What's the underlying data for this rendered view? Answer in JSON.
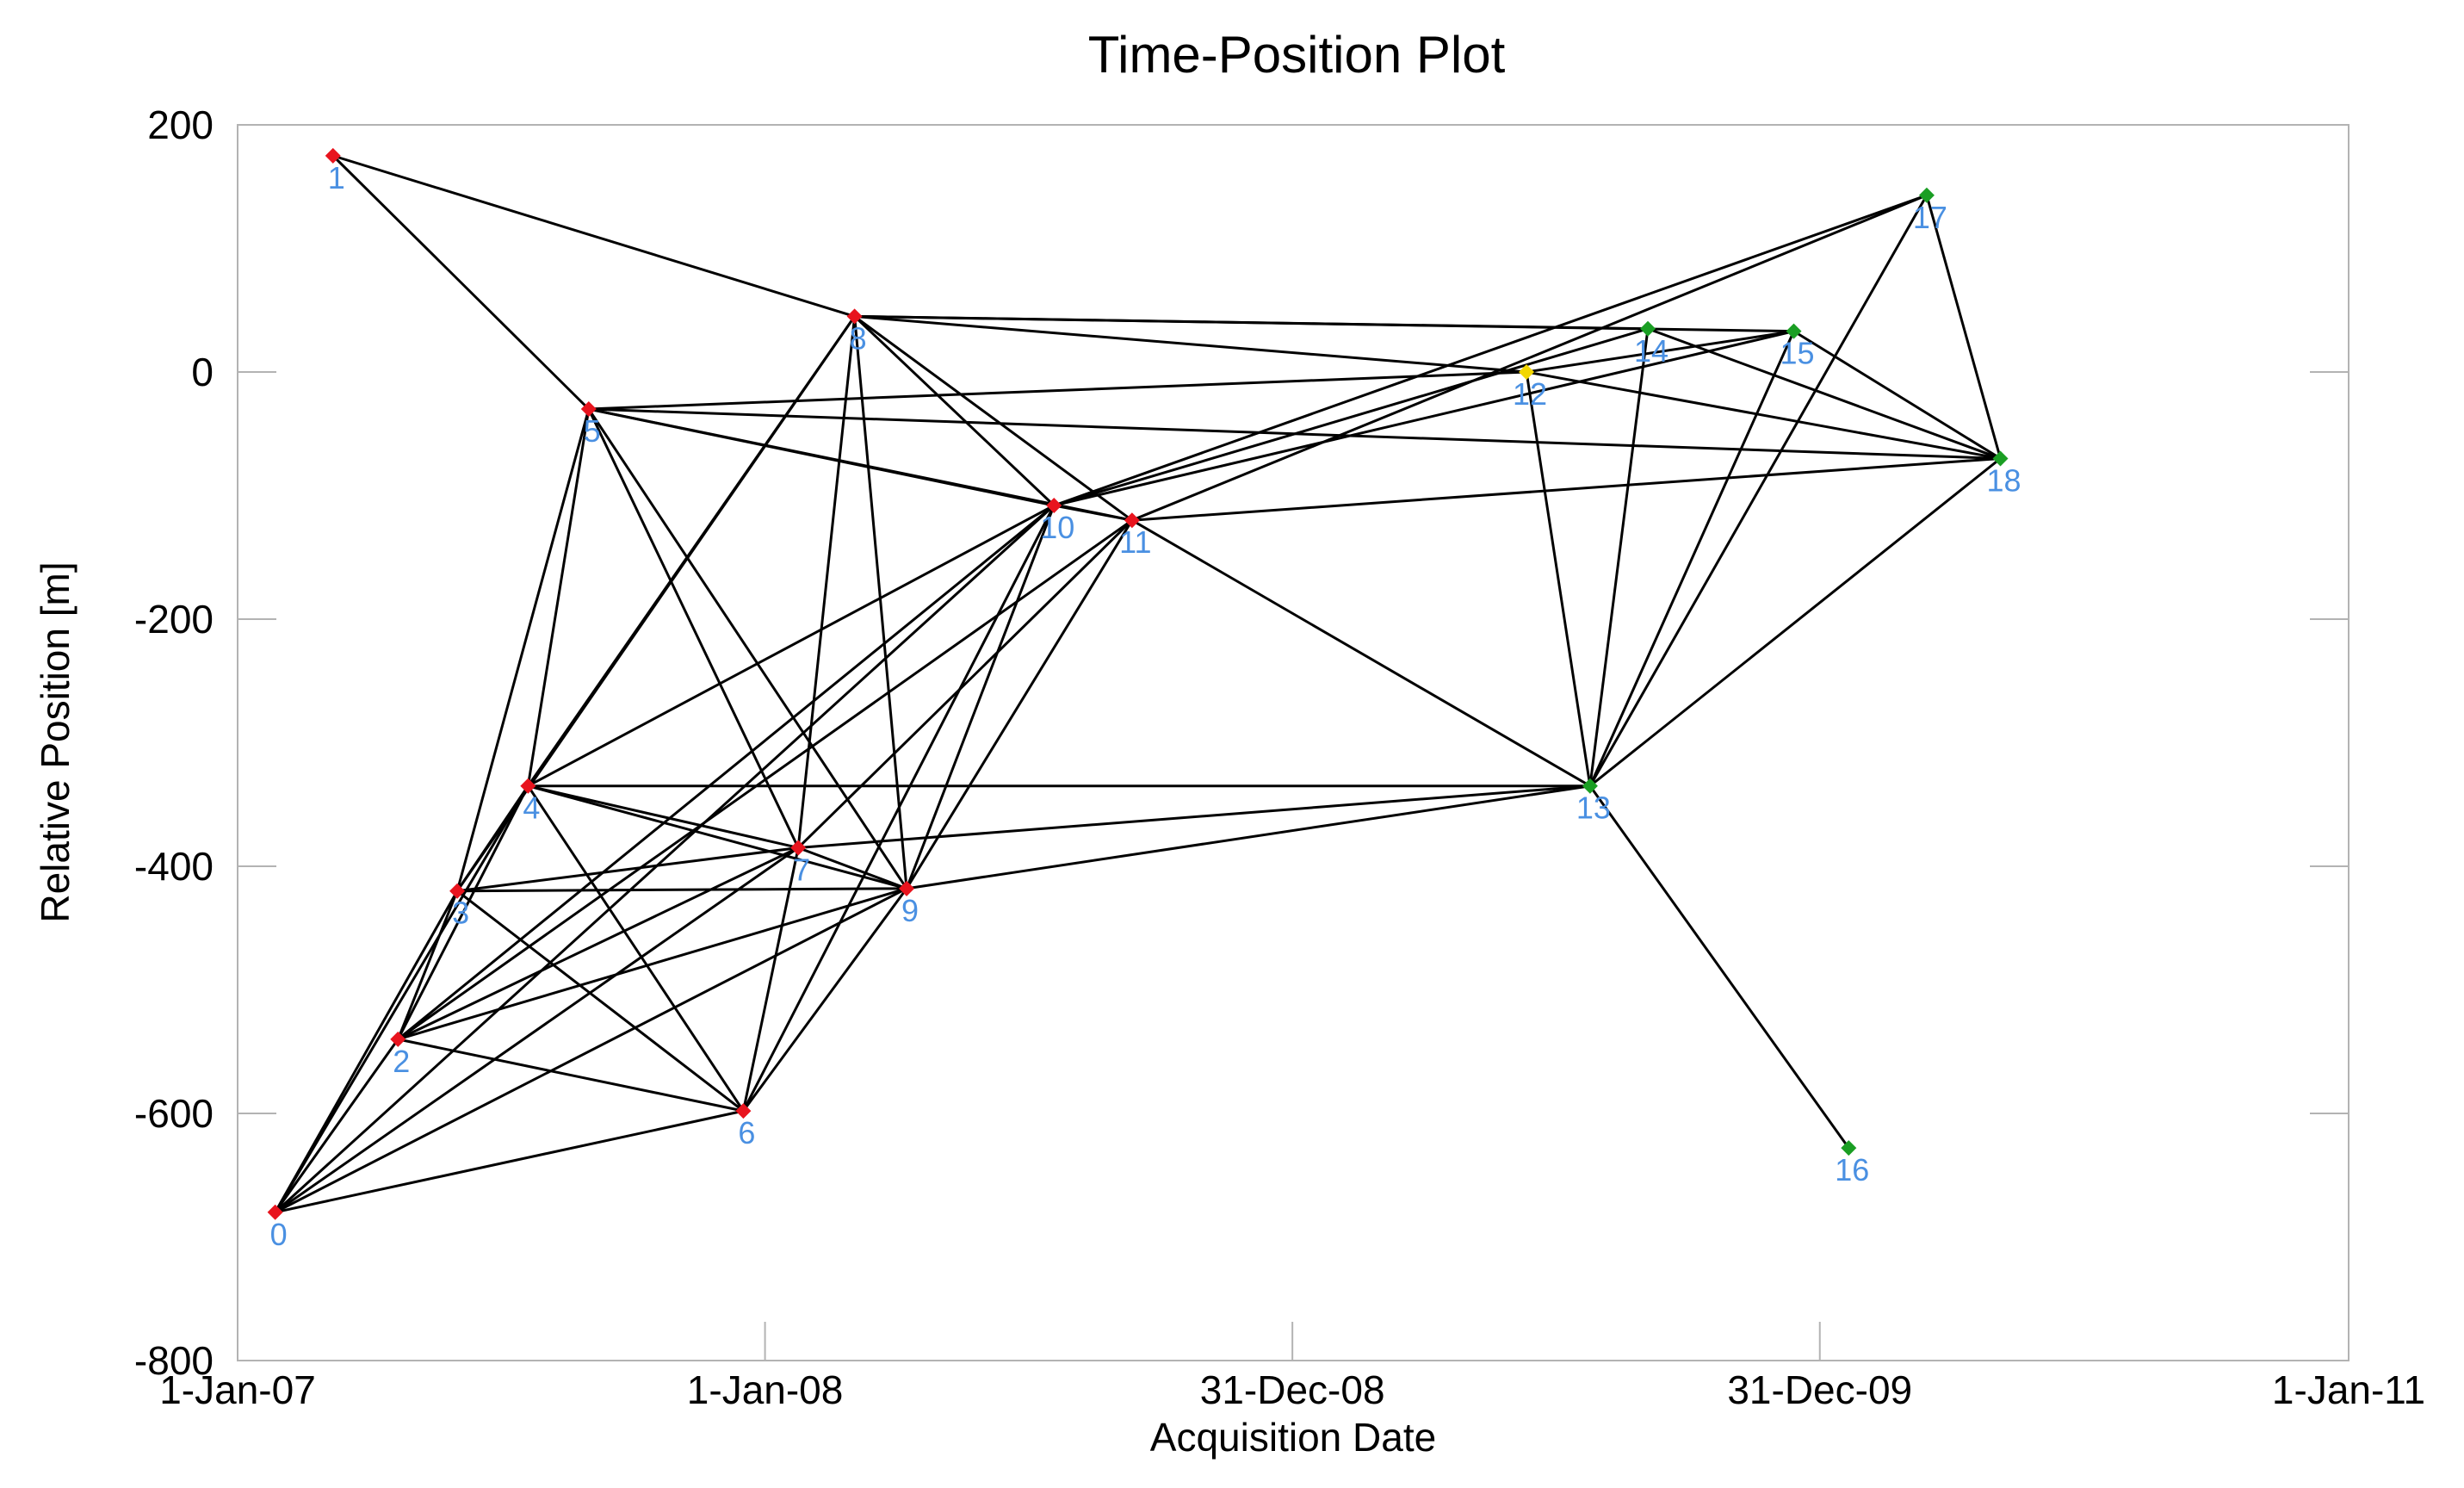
{
  "chart_data": {
    "type": "scatter",
    "title": "Time-Position Plot",
    "xlabel": "Acquisition Date",
    "ylabel": "Relative Position [m]",
    "xlim": [
      "2007-01-01",
      "2011-01-01"
    ],
    "ylim": [
      -800,
      200
    ],
    "x_ticks": [
      {
        "date": "2007-01-01",
        "label": "1-Jan-07"
      },
      {
        "date": "2008-01-01",
        "label": "1-Jan-08"
      },
      {
        "date": "2008-12-31",
        "label": "31-Dec-08"
      },
      {
        "date": "2009-12-31",
        "label": "31-Dec-09"
      },
      {
        "date": "2011-01-01",
        "label": "1-Jan-11"
      }
    ],
    "y_ticks": [
      {
        "value": 200,
        "label": "200"
      },
      {
        "value": 0,
        "label": "0"
      },
      {
        "value": -200,
        "label": "-200"
      },
      {
        "value": -400,
        "label": "-400"
      },
      {
        "value": -600,
        "label": "-600"
      },
      {
        "value": -800,
        "label": "-800"
      }
    ],
    "grid": false,
    "marker_colors": {
      "red": "#e8141e",
      "green": "#1a9e23",
      "yellow": "#f2d600",
      "label": "#4a90e2",
      "edge": "#000000"
    },
    "points": [
      {
        "id": "0",
        "date": "2007-01-27",
        "y": -680,
        "color": "red"
      },
      {
        "id": "1",
        "date": "2007-03-08",
        "y": 175,
        "color": "red"
      },
      {
        "id": "2",
        "date": "2007-04-22",
        "y": -540,
        "color": "red"
      },
      {
        "id": "3",
        "date": "2007-06-02",
        "y": -420,
        "color": "red"
      },
      {
        "id": "4",
        "date": "2007-07-21",
        "y": -335,
        "color": "red"
      },
      {
        "id": "5",
        "date": "2007-09-01",
        "y": -30,
        "color": "red"
      },
      {
        "id": "6",
        "date": "2007-12-17",
        "y": -598,
        "color": "red"
      },
      {
        "id": "7",
        "date": "2008-01-24",
        "y": -385,
        "color": "red"
      },
      {
        "id": "8",
        "date": "2008-03-03",
        "y": 45,
        "color": "red"
      },
      {
        "id": "9",
        "date": "2008-04-08",
        "y": -418,
        "color": "red"
      },
      {
        "id": "10",
        "date": "2008-07-19",
        "y": -108,
        "color": "red"
      },
      {
        "id": "11",
        "date": "2008-09-11",
        "y": -120,
        "color": "red"
      },
      {
        "id": "12",
        "date": "2009-06-11",
        "y": 0,
        "color": "yellow"
      },
      {
        "id": "13",
        "date": "2009-07-25",
        "y": -335,
        "color": "green"
      },
      {
        "id": "14",
        "date": "2009-09-03",
        "y": 35,
        "color": "green"
      },
      {
        "id": "15",
        "date": "2009-12-13",
        "y": 33,
        "color": "green"
      },
      {
        "id": "16",
        "date": "2010-01-20",
        "y": -628,
        "color": "green"
      },
      {
        "id": "17",
        "date": "2010-03-15",
        "y": 143,
        "color": "green"
      },
      {
        "id": "18",
        "date": "2010-05-05",
        "y": -70,
        "color": "green"
      }
    ],
    "edges": [
      [
        0,
        2
      ],
      [
        0,
        3
      ],
      [
        0,
        4
      ],
      [
        0,
        6
      ],
      [
        0,
        7
      ],
      [
        0,
        9
      ],
      [
        0,
        10
      ],
      [
        1,
        5
      ],
      [
        1,
        8
      ],
      [
        2,
        3
      ],
      [
        2,
        4
      ],
      [
        2,
        6
      ],
      [
        2,
        7
      ],
      [
        2,
        9
      ],
      [
        2,
        10
      ],
      [
        2,
        11
      ],
      [
        3,
        4
      ],
      [
        3,
        5
      ],
      [
        3,
        6
      ],
      [
        3,
        7
      ],
      [
        3,
        8
      ],
      [
        3,
        9
      ],
      [
        4,
        5
      ],
      [
        4,
        6
      ],
      [
        4,
        7
      ],
      [
        4,
        8
      ],
      [
        4,
        9
      ],
      [
        4,
        10
      ],
      [
        4,
        13
      ],
      [
        5,
        7
      ],
      [
        5,
        9
      ],
      [
        5,
        10
      ],
      [
        5,
        11
      ],
      [
        5,
        12
      ],
      [
        5,
        18
      ],
      [
        6,
        7
      ],
      [
        6,
        9
      ],
      [
        6,
        10
      ],
      [
        7,
        8
      ],
      [
        7,
        9
      ],
      [
        7,
        11
      ],
      [
        7,
        13
      ],
      [
        8,
        9
      ],
      [
        8,
        10
      ],
      [
        8,
        11
      ],
      [
        8,
        12
      ],
      [
        8,
        14
      ],
      [
        8,
        15
      ],
      [
        9,
        10
      ],
      [
        9,
        11
      ],
      [
        9,
        13
      ],
      [
        10,
        11
      ],
      [
        10,
        14
      ],
      [
        10,
        15
      ],
      [
        10,
        17
      ],
      [
        11,
        13
      ],
      [
        11,
        17
      ],
      [
        11,
        18
      ],
      [
        12,
        13
      ],
      [
        12,
        15
      ],
      [
        12,
        18
      ],
      [
        13,
        14
      ],
      [
        13,
        15
      ],
      [
        13,
        16
      ],
      [
        13,
        17
      ],
      [
        13,
        18
      ],
      [
        14,
        18
      ],
      [
        15,
        18
      ],
      [
        17,
        18
      ]
    ]
  }
}
